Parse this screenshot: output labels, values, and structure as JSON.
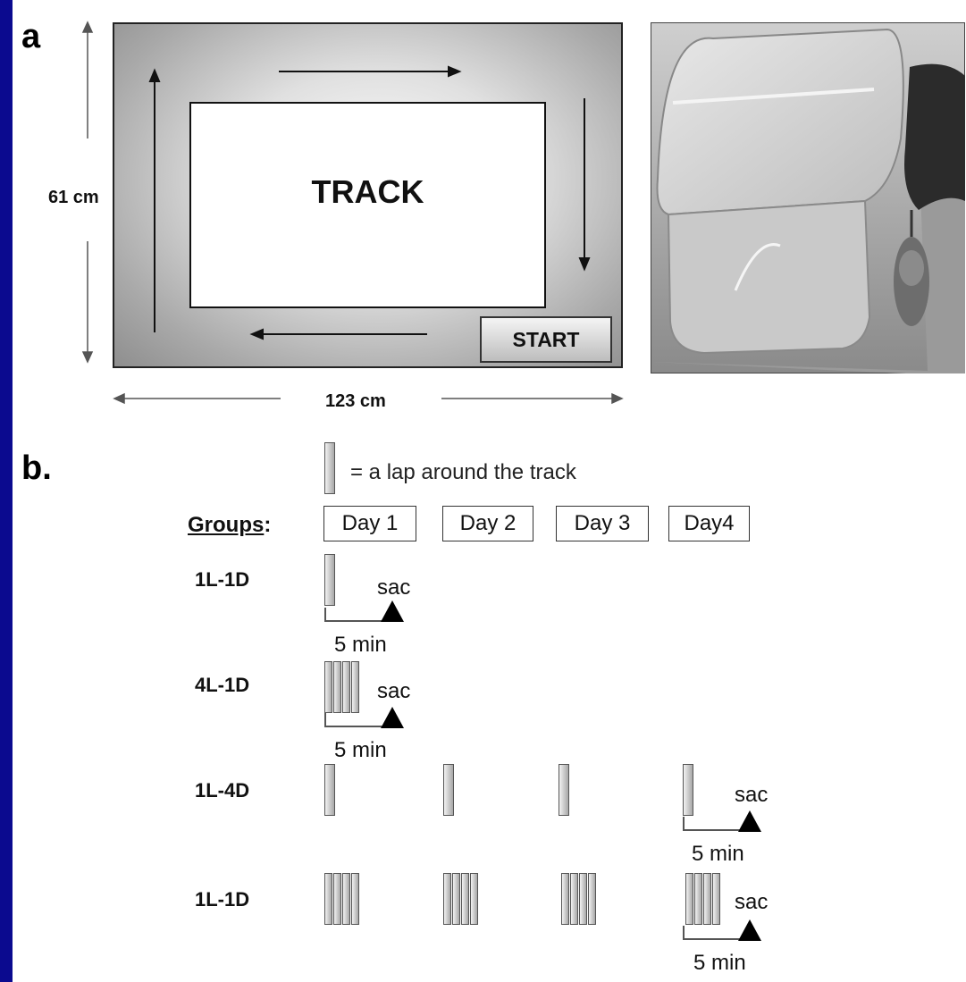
{
  "panel_a": {
    "label": "a",
    "height_label": "61 cm",
    "width_label": "123 cm",
    "track_label": "TRACK",
    "start_label": "START"
  },
  "panel_b": {
    "label": "b.",
    "legend_text": "= a lap around the track",
    "groups_heading": "Groups",
    "groups_colon": ":",
    "days": [
      "Day 1",
      "Day 2",
      "Day 3",
      "Day4"
    ],
    "groups": [
      {
        "name": "1L-1D",
        "sac": "sac",
        "interval": "5 min"
      },
      {
        "name": "4L-1D",
        "sac": "sac",
        "interval": "5 min"
      },
      {
        "name": "1L-4D",
        "sac": "sac",
        "interval": "5 min"
      },
      {
        "name": "1L-1D",
        "sac": "sac",
        "interval": "5 min"
      }
    ]
  }
}
